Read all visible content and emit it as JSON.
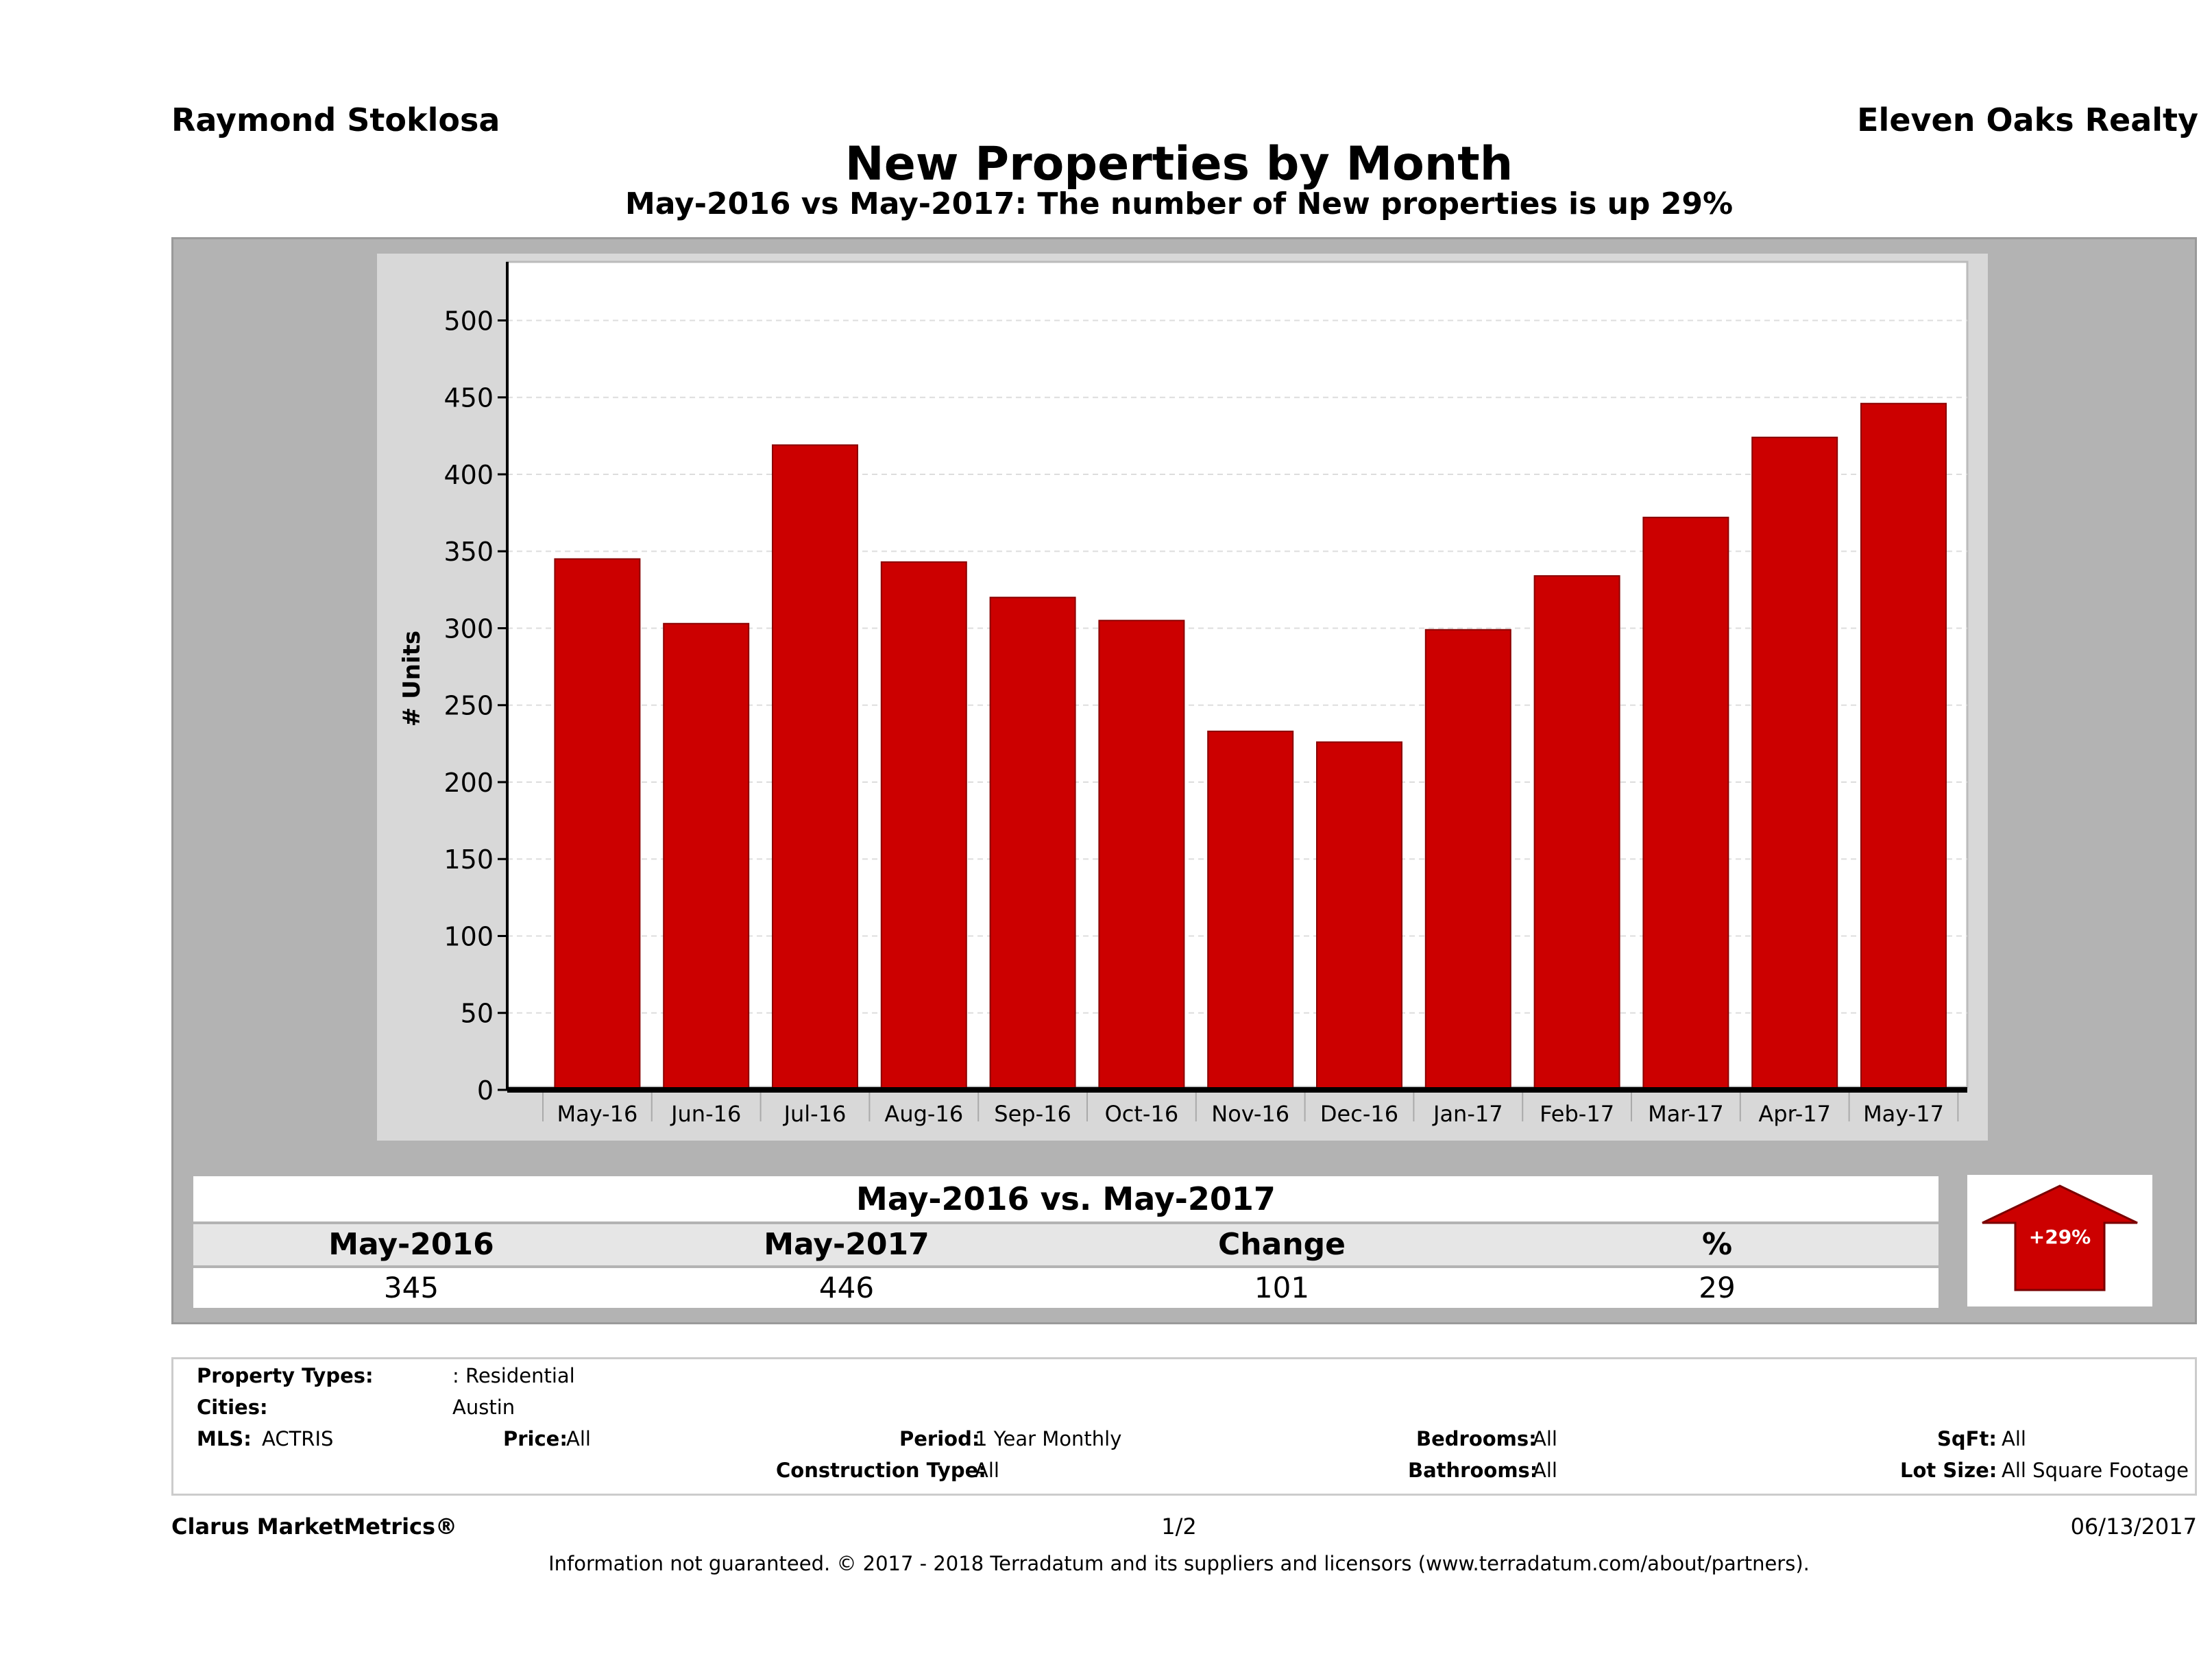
{
  "header": {
    "agent": "Raymond Stoklosa",
    "brokerage": "Eleven Oaks Realty",
    "title": "New Properties by Month",
    "subtitle": "May-2016 vs May-2017: The number of New  properties is up 29%"
  },
  "colors": {
    "bar": "#cc0000",
    "panel": "#b3b3b3",
    "plot_bg": "#ffffff"
  },
  "chart_data": {
    "type": "bar",
    "categories": [
      "May-16",
      "Jun-16",
      "Jul-16",
      "Aug-16",
      "Sep-16",
      "Oct-16",
      "Nov-16",
      "Dec-16",
      "Jan-17",
      "Feb-17",
      "Mar-17",
      "Apr-17",
      "May-17"
    ],
    "values": [
      345,
      303,
      419,
      343,
      320,
      305,
      233,
      226,
      299,
      334,
      372,
      424,
      446
    ],
    "ylabel": "# Units",
    "ylim": [
      0,
      530
    ],
    "yticks": [
      "0",
      "50",
      "100",
      "150",
      "200",
      "250",
      "300",
      "350",
      "400",
      "450",
      "500"
    ],
    "grid": true
  },
  "summary": {
    "title": "May-2016 vs. May-2017",
    "labels": [
      "May-2016",
      "May-2017",
      "Change",
      "%"
    ],
    "values": [
      "345",
      "446",
      "101",
      "29"
    ],
    "badge": "+29%",
    "badge_icon": "up-arrow-icon"
  },
  "filters": {
    "property_types_label": "Property Types:",
    "property_types_value": ": Residential",
    "cities_label": "Cities:",
    "cities_value": "Austin",
    "mls_label": "MLS:",
    "mls_value": "ACTRIS",
    "price_label": "Price:",
    "price_value": "All",
    "period_label": "Period:",
    "period_value": "1 Year Monthly",
    "construction_label": "Construction Type:",
    "construction_value": "All",
    "bedrooms_label": "Bedrooms:",
    "bedrooms_value": "All",
    "bathrooms_label": "Bathrooms:",
    "bathrooms_value": "All",
    "sqft_label": "SqFt:",
    "sqft_value": "All",
    "lot_label": "Lot Size:",
    "lot_value": "All Square Footage"
  },
  "footer": {
    "product": "Clarus MarketMetrics®",
    "page": "1/2",
    "date": "06/13/2017",
    "disclaimer": "Information not guaranteed. © 2017 - 2018 Terradatum and its suppliers and licensors (www.terradatum.com/about/partners)."
  }
}
